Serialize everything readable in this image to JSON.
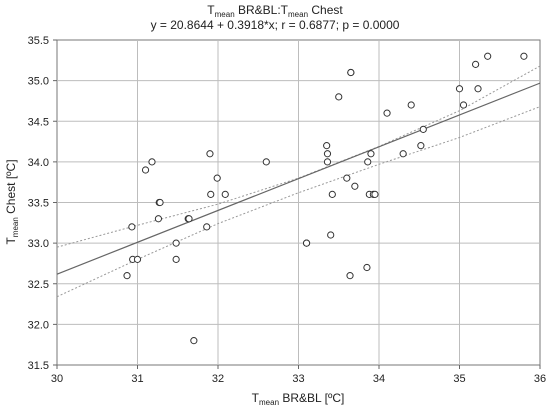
{
  "chart_data": {
    "type": "scatter",
    "title": {
      "main": "T",
      "sub": "mean",
      "rest": " BR&BL:T",
      "sub2": "mean",
      "rest2": " Chest"
    },
    "subtitle": "y = 20.8644 + 0.3918*x;  r = 0.6877; p = 0.0000",
    "xlabel": {
      "main": "T",
      "sub": "mean",
      "rest": " BR&BL  [ºC]"
    },
    "ylabel": {
      "main": "T",
      "sub": "mean",
      "rest": " Chest [ºC]"
    },
    "xlim": [
      30,
      36
    ],
    "ylim": [
      31.5,
      35.5
    ],
    "xticks": [
      30,
      31,
      32,
      33,
      34,
      35,
      36
    ],
    "yticks": [
      31.5,
      32.0,
      32.5,
      33.0,
      33.5,
      34.0,
      34.5,
      35.0,
      35.5
    ],
    "ytick_labels": [
      "31.5",
      "32.0",
      "32.5",
      "33.0",
      "33.5",
      "34.0",
      "34.5",
      "35.0",
      "35.5"
    ],
    "grid": true,
    "regression": {
      "intercept": 20.8644,
      "slope": 0.3918
    },
    "confidence_band": {
      "lower": [
        [
          30,
          32.34
        ],
        [
          31,
          32.8
        ],
        [
          32,
          33.24
        ],
        [
          33,
          33.62
        ],
        [
          34,
          33.97
        ],
        [
          35,
          34.3
        ],
        [
          36,
          34.68
        ]
      ],
      "upper": [
        [
          30,
          32.95
        ],
        [
          31,
          33.22
        ],
        [
          32,
          33.48
        ],
        [
          33,
          33.8
        ],
        [
          34,
          34.19
        ],
        [
          35,
          34.63
        ],
        [
          36,
          35.18
        ]
      ]
    },
    "points": [
      [
        30.87,
        32.6
      ],
      [
        30.93,
        33.2
      ],
      [
        30.94,
        32.8
      ],
      [
        31.0,
        32.8
      ],
      [
        31.1,
        33.9
      ],
      [
        31.18,
        34.0
      ],
      [
        31.26,
        33.3
      ],
      [
        31.27,
        33.5
      ],
      [
        31.28,
        33.5
      ],
      [
        31.48,
        33.0
      ],
      [
        31.48,
        32.8
      ],
      [
        31.63,
        33.3
      ],
      [
        31.64,
        33.3
      ],
      [
        31.7,
        31.8
      ],
      [
        31.86,
        33.2
      ],
      [
        31.9,
        34.1
      ],
      [
        31.91,
        33.6
      ],
      [
        31.99,
        33.8
      ],
      [
        32.09,
        33.6
      ],
      [
        32.6,
        34.0
      ],
      [
        33.1,
        33.0
      ],
      [
        33.1,
        33.0
      ],
      [
        33.35,
        34.2
      ],
      [
        33.36,
        34.1
      ],
      [
        33.36,
        34.0
      ],
      [
        33.4,
        33.1
      ],
      [
        33.42,
        33.6
      ],
      [
        33.5,
        34.8
      ],
      [
        33.6,
        33.8
      ],
      [
        33.64,
        32.6
      ],
      [
        33.65,
        35.1
      ],
      [
        33.65,
        35.1
      ],
      [
        33.7,
        33.7
      ],
      [
        33.85,
        32.7
      ],
      [
        33.86,
        34.0
      ],
      [
        33.88,
        33.6
      ],
      [
        33.9,
        34.1
      ],
      [
        33.93,
        33.6
      ],
      [
        33.95,
        33.6
      ],
      [
        34.1,
        34.6
      ],
      [
        34.3,
        34.1
      ],
      [
        34.4,
        34.7
      ],
      [
        34.52,
        34.2
      ],
      [
        34.55,
        34.4
      ],
      [
        35.0,
        34.9
      ],
      [
        35.05,
        34.7
      ],
      [
        35.2,
        35.2
      ],
      [
        35.23,
        34.9
      ],
      [
        35.35,
        35.3
      ],
      [
        35.8,
        35.3
      ]
    ],
    "colors": {
      "axis": "#666666",
      "grid": "#bdbdbd",
      "point": "#333333",
      "regression": "#666666",
      "band": "#999999"
    }
  }
}
